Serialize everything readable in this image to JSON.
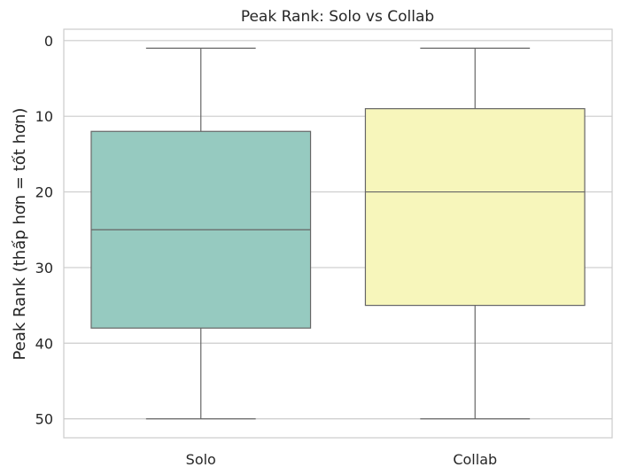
{
  "chart_data": {
    "type": "box",
    "title": "Peak Rank: Solo vs Collab",
    "xlabel": "",
    "ylabel": "Peak Rank (thấp hơn = tốt hơn)",
    "y_inverted": true,
    "ylim": [
      52.5,
      -1.5
    ],
    "yticks": [
      0,
      10,
      20,
      30,
      40,
      50
    ],
    "grid": "horizontal",
    "categories": [
      "Solo",
      "Collab"
    ],
    "boxes": [
      {
        "category": "Solo",
        "min": 1,
        "q1": 12,
        "median": 25,
        "q3": 38,
        "max": 50,
        "color": "#96cac0"
      },
      {
        "category": "Collab",
        "min": 1,
        "q1": 9,
        "median": 20,
        "q3": 35,
        "max": 50,
        "color": "#f7f6bb"
      }
    ],
    "line_color": "#666666",
    "grid_color": "#cccccc"
  }
}
